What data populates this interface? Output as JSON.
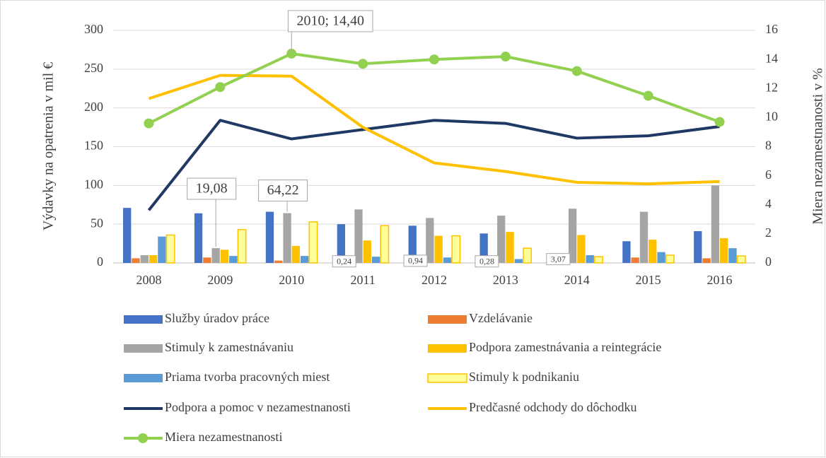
{
  "chart_data": {
    "type": "bar",
    "ylabel": "Výdavky na opatrenia v mil €",
    "y2label": "Miera nezamestnanosti v %",
    "categories": [
      "2008",
      "2009",
      "2010",
      "2011",
      "2012",
      "2013",
      "2014",
      "2015",
      "2016"
    ],
    "ylim": [
      0,
      300
    ],
    "yticks": [
      0,
      50,
      100,
      150,
      200,
      250,
      300
    ],
    "y2lim": [
      0,
      16
    ],
    "y2ticks": [
      0,
      2,
      4,
      6,
      8,
      10,
      12,
      14,
      16
    ],
    "legend": "bottom",
    "series": [
      {
        "name": "Služby úradov práce",
        "color": "#4472c4",
        "values": [
          71,
          64,
          66,
          50,
          48,
          38,
          12,
          28,
          41
        ]
      },
      {
        "name": "Vzdelávanie",
        "color": "#ed7d31",
        "values": [
          6,
          7,
          3,
          0.24,
          0.94,
          0.28,
          3.07,
          7,
          6
        ],
        "value_labels": [
          null,
          null,
          null,
          "0,24",
          "0,94",
          "0,28",
          "3,07",
          null,
          null
        ]
      },
      {
        "name": "Stimuly k zamestnávaniu",
        "color": "#a5a5a5",
        "values": [
          10,
          19.08,
          64.22,
          69,
          58,
          61,
          70,
          66,
          100
        ],
        "value_labels": [
          null,
          "19,08",
          "64,22",
          null,
          null,
          null,
          null,
          null,
          null
        ]
      },
      {
        "name": "Podpora zamestnávania a reintegrácie",
        "color": "#ffc000",
        "values": [
          10,
          17,
          22,
          29,
          35,
          40,
          36,
          30,
          32
        ]
      },
      {
        "name": "Priama tvorba pracovných miest",
        "color": "#5b9bd5",
        "values": [
          34,
          9,
          9,
          8,
          7,
          5,
          10,
          14,
          19
        ]
      },
      {
        "name": "Stimuly k podnikaniu",
        "color": "#ffff99",
        "edgecolor": "#ffc000",
        "values": [
          36,
          43,
          53,
          48,
          35,
          19,
          8,
          10,
          9
        ]
      },
      {
        "name": "Podpora a pomoc v nezamestnanosti",
        "type": "line",
        "color": "#203864",
        "values": [
          68,
          184,
          160,
          172,
          184,
          180,
          161,
          164,
          176
        ]
      },
      {
        "name": "Predčasné odchody do dôchodku",
        "type": "line",
        "color": "#ffc000",
        "values": [
          212,
          242,
          241,
          175,
          129,
          118,
          104,
          102,
          105
        ]
      },
      {
        "name": "Miera nezamestnanosti",
        "type": "line",
        "marker": true,
        "axis": "y2",
        "color": "#92d050",
        "values": [
          9.6,
          12.1,
          14.4,
          13.7,
          14.0,
          14.2,
          13.2,
          11.5,
          9.7
        ],
        "value_labels": [
          null,
          null,
          "2010; 14,40",
          null,
          null,
          null,
          null,
          null,
          null
        ]
      }
    ]
  }
}
